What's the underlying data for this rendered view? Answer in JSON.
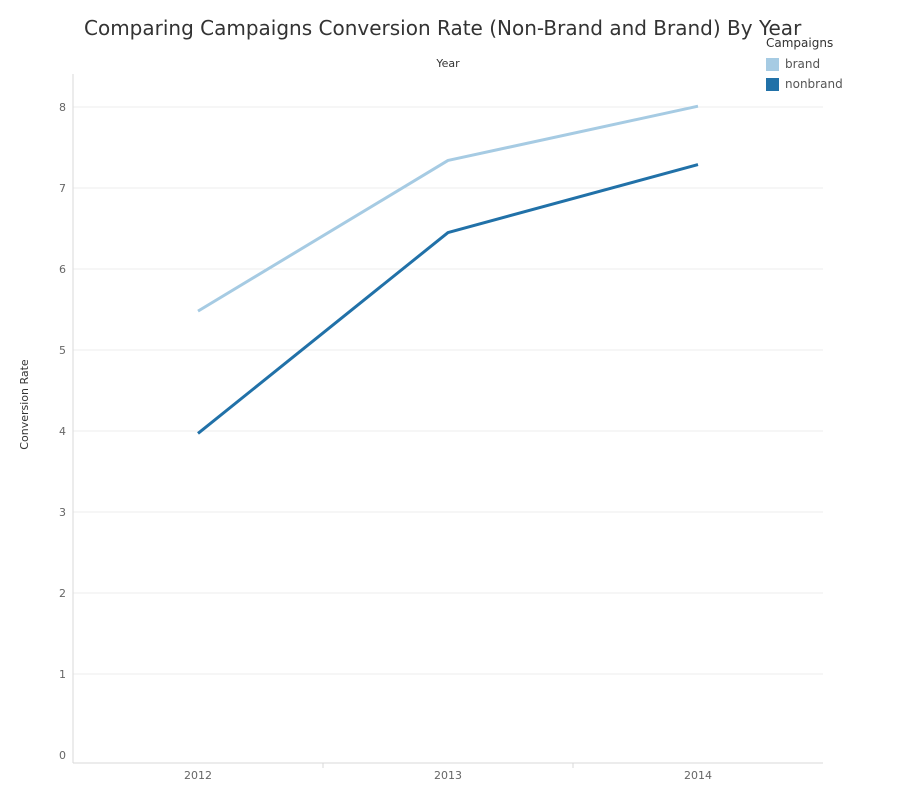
{
  "chart_data": {
    "type": "line",
    "title": "Comparing Campaigns Conversion Rate (Non-Brand and Brand) By Year",
    "xlabel": "Year",
    "ylabel": "Conversion Rate",
    "categories": [
      "2012",
      "2013",
      "2014"
    ],
    "ylim": [
      0,
      8
    ],
    "yticks": [
      "0",
      "1",
      "2",
      "3",
      "4",
      "5",
      "6",
      "7",
      "8"
    ],
    "grid": true,
    "legend_title": "Campaigns",
    "legend_position": "top-right",
    "series": [
      {
        "name": "brand",
        "values": [
          5.48,
          7.34,
          8.01
        ],
        "color": "#a6cbe3"
      },
      {
        "name": "nonbrand",
        "values": [
          3.97,
          6.45,
          7.29
        ],
        "color": "#2171a8"
      }
    ]
  }
}
